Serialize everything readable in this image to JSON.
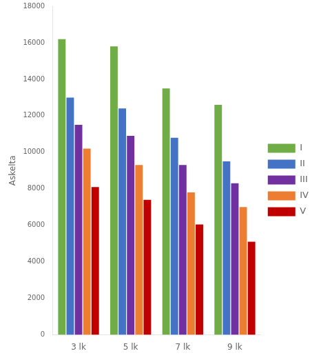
{
  "chart_data": {
    "type": "bar",
    "ylabel": "Askelta",
    "categories": [
      "3 lk",
      "5 lk",
      "7 lk",
      "9 lk"
    ],
    "series": [
      {
        "name": "I",
        "color": "#70ad47",
        "values": [
          16200,
          15800,
          13500,
          12600
        ]
      },
      {
        "name": "II",
        "color": "#4472c4",
        "values": [
          13000,
          12400,
          10800,
          9500
        ]
      },
      {
        "name": "III",
        "color": "#7030a0",
        "values": [
          11500,
          10900,
          9300,
          8300
        ]
      },
      {
        "name": "IV",
        "color": "#ed7d31",
        "values": [
          10200,
          9300,
          7800,
          7000
        ]
      },
      {
        "name": "V",
        "color": "#c00000",
        "values": [
          8100,
          7400,
          6050,
          5100
        ]
      }
    ],
    "ylim": [
      0,
      18000
    ],
    "yticks": [
      0,
      2000,
      4000,
      6000,
      8000,
      10000,
      12000,
      14000,
      16000,
      18000
    ],
    "grid": false,
    "legend": "right"
  }
}
